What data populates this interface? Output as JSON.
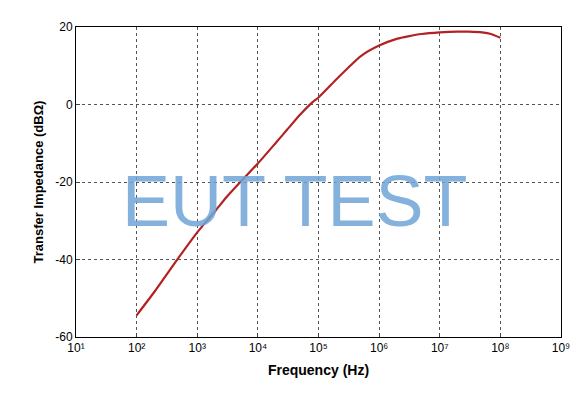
{
  "chart_data": {
    "type": "line",
    "x_label": "Frequency (Hz)",
    "y_label": "Transfer Impedance (dBΩ)",
    "annotations": [
      {
        "text": "EUT TEST"
      }
    ],
    "log": "x",
    "grid": true,
    "x": [
      100,
      200,
      300,
      500,
      1000,
      2000,
      3000,
      5000,
      10000,
      20000,
      30000,
      50000,
      80000,
      100000,
      200000,
      300000,
      500000,
      1000000,
      2000000,
      3000000,
      5000000,
      10000000,
      20000000,
      30000000,
      50000000,
      70000000,
      100000000
    ],
    "series": [
      {
        "name": "Transfer Impedance",
        "color": "#b22222",
        "values": [
          -54.4,
          -48.2,
          -44.3,
          -39.4,
          -33.0,
          -27.4,
          -24.0,
          -20.2,
          -15.2,
          -9.8,
          -6.6,
          -2.6,
          0.6,
          1.8,
          6.6,
          9.3,
          12.5,
          15.2,
          17.0,
          17.6,
          18.2,
          18.6,
          18.8,
          18.8,
          18.6,
          18.2,
          17.2
        ]
      }
    ],
    "xlim": [
      10,
      1000000000
    ],
    "xticks": [
      {
        "value": 10,
        "label": "10¹"
      },
      {
        "value": 100,
        "label": "10²"
      },
      {
        "value": 1000,
        "label": "10³"
      },
      {
        "value": 10000,
        "label": "10⁴"
      },
      {
        "value": 100000,
        "label": "10⁵"
      },
      {
        "value": 1000000,
        "label": "10⁶"
      },
      {
        "value": 10000000,
        "label": "10⁷"
      },
      {
        "value": 100000000,
        "label": "10⁸"
      },
      {
        "value": 1000000000,
        "label": "10⁹"
      }
    ],
    "ylim": [
      -60,
      20
    ],
    "yticks": [
      -60,
      -40,
      -20,
      0,
      20
    ]
  }
}
